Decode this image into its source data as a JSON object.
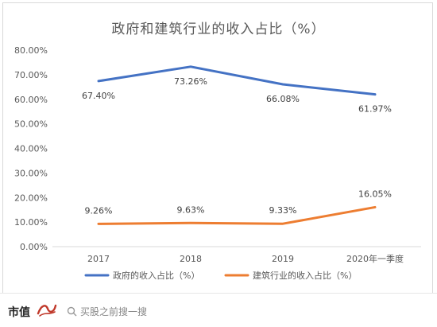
{
  "chart_data": {
    "type": "line",
    "title": "政府和建筑行业的收入占比（%）",
    "categories": [
      "2017",
      "2018",
      "2019",
      "2020年一季度"
    ],
    "y_ticks": [
      "0.00%",
      "10.00%",
      "20.00%",
      "30.00%",
      "40.00%",
      "50.00%",
      "60.00%",
      "70.00%",
      "80.00%"
    ],
    "ylim": [
      0,
      80
    ],
    "grid": false,
    "legend_position": "bottom",
    "series": [
      {
        "name": "政府的收入占比（%）",
        "values": [
          67.4,
          73.26,
          66.08,
          61.97
        ],
        "labels": [
          "67.40%",
          "73.26%",
          "66.08%",
          "61.97%"
        ],
        "color": "#4472c4",
        "label_position": "below"
      },
      {
        "name": "建筑行业的收入占比（%）",
        "values": [
          9.26,
          9.63,
          9.33,
          16.05
        ],
        "labels": [
          "9.26%",
          "9.63%",
          "9.33%",
          "16.05%"
        ],
        "color": "#ed7d31",
        "label_position": "above"
      }
    ]
  },
  "footer": {
    "brand": "市值",
    "search_hint": "买股之前搜一搜"
  }
}
